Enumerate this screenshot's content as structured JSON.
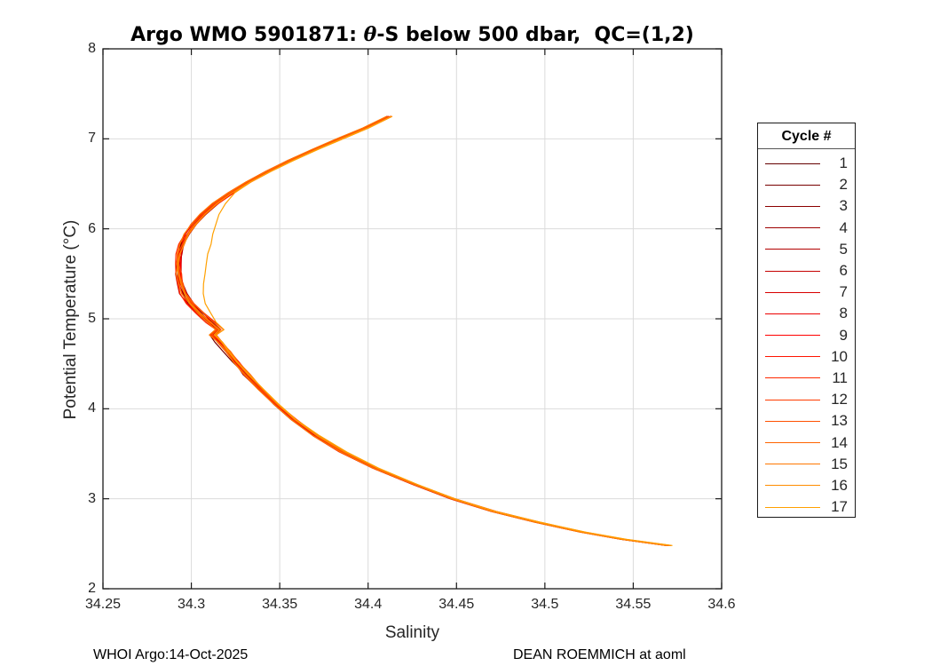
{
  "figure": {
    "title": {
      "prefix": "Argo WMO 5901871: ",
      "theta": "θ",
      "suffix": "-S below 500 dbar,  QC=(1,2)"
    },
    "footer_left": "WHOI Argo:14-Oct-2025",
    "footer_right": "DEAN ROEMMICH at aoml"
  },
  "chart_data": {
    "type": "line",
    "title": "Argo WMO 5901871: θ-S below 500 dbar,  QC=(1,2)",
    "xlabel": "Salinity",
    "ylabel": "Potential Temperature (°C)",
    "xlim": [
      34.25,
      34.6
    ],
    "ylim": [
      2,
      8
    ],
    "xticks": [
      34.25,
      34.3,
      34.35,
      34.4,
      34.45,
      34.5,
      34.55,
      34.6
    ],
    "xtick_labels": [
      "34.25",
      "34.3",
      "34.35",
      "34.4",
      "34.45",
      "34.5",
      "34.55",
      "34.6"
    ],
    "yticks": [
      2,
      3,
      4,
      5,
      6,
      7,
      8
    ],
    "ytick_labels": [
      "2",
      "3",
      "4",
      "5",
      "6",
      "7",
      "8"
    ],
    "grid": true,
    "legend_title": "Cycle #",
    "legend_position": "outside-right",
    "base_profile": {
      "theta": [
        7.25,
        7.12,
        7.0,
        6.88,
        6.76,
        6.64,
        6.52,
        6.4,
        6.28,
        6.16,
        6.05,
        5.94,
        5.83,
        5.72,
        5.61,
        5.5,
        5.39,
        5.28,
        5.17,
        5.06,
        4.96,
        4.88,
        4.82,
        4.74,
        4.64,
        4.52,
        4.38,
        4.22,
        4.05,
        3.88,
        3.7,
        3.52,
        3.34,
        3.16,
        3.0,
        2.86,
        2.74,
        2.63,
        2.55,
        2.48
      ],
      "salinity": [
        34.412,
        34.3985,
        34.384,
        34.3695,
        34.356,
        34.3435,
        34.332,
        34.322,
        34.3135,
        34.3065,
        34.3015,
        34.2975,
        34.295,
        34.2932,
        34.2924,
        34.2925,
        34.2938,
        34.2962,
        34.2998,
        34.305,
        34.3105,
        34.315,
        34.3118,
        34.316,
        34.3205,
        34.325,
        34.331,
        34.339,
        34.348,
        34.358,
        34.3705,
        34.3855,
        34.404,
        34.4265,
        34.448,
        34.471,
        34.4955,
        34.521,
        34.544,
        34.57
      ]
    },
    "bump_window": [
      4.95,
      6.45
    ],
    "series": [
      {
        "name": "1",
        "color": "#640000",
        "offset": 0.0,
        "bump": 0
      },
      {
        "name": "2",
        "color": "#770000",
        "offset": -0.0008,
        "bump": 0
      },
      {
        "name": "3",
        "color": "#8B0000",
        "offset": 0.0006,
        "bump": 0
      },
      {
        "name": "4",
        "color": "#9E0000",
        "offset": -0.0004,
        "bump": 0
      },
      {
        "name": "5",
        "color": "#B20000",
        "offset": 0.001,
        "bump": 0
      },
      {
        "name": "6",
        "color": "#C50000",
        "offset": -0.0012,
        "bump": 0
      },
      {
        "name": "7",
        "color": "#D80000",
        "offset": 0.0003,
        "bump": 0
      },
      {
        "name": "8",
        "color": "#EC0000",
        "offset": -0.0006,
        "bump": 0
      },
      {
        "name": "9",
        "color": "#FF0000",
        "offset": 0.0012,
        "bump": 0
      },
      {
        "name": "10",
        "color": "#FF1400",
        "offset": 0.0008,
        "bump": 0
      },
      {
        "name": "11",
        "color": "#FF2800",
        "offset": -0.001,
        "bump": 0
      },
      {
        "name": "12",
        "color": "#FF3C00",
        "offset": 0.0004,
        "bump": 0
      },
      {
        "name": "13",
        "color": "#FF5000",
        "offset": -0.0003,
        "bump": 0
      },
      {
        "name": "14",
        "color": "#FF6400",
        "offset": 0.0014,
        "bump": 0
      },
      {
        "name": "15",
        "color": "#FF7800",
        "offset": -0.0014,
        "bump": 0
      },
      {
        "name": "16",
        "color": "#FF8C00",
        "offset": 0.0009,
        "bump": 0
      },
      {
        "name": "17",
        "color": "#FFA000",
        "offset": 0.0018,
        "bump": 0.014
      }
    ]
  },
  "colors": {
    "grid": "#DBDBDB",
    "axis": "#1a1a1a",
    "tick_label": "#262626"
  }
}
